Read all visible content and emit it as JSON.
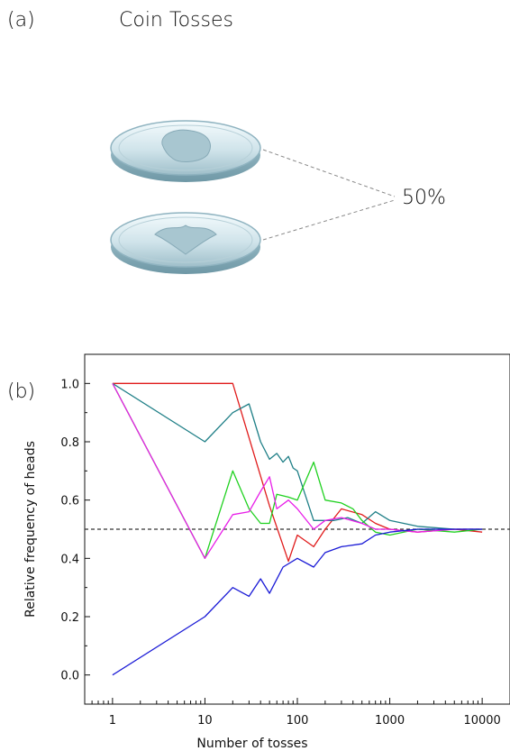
{
  "panel_a": {
    "label": "(a)",
    "title": "Coin Tosses",
    "percentage": "50%"
  },
  "panel_b": {
    "label": "(b)"
  },
  "colors": {
    "red": "#e01b1b",
    "teal": "#1f7f87",
    "green": "#1fd11f",
    "magenta": "#e81ee8",
    "blue": "#1a1ad6",
    "reference": "#333333"
  },
  "chart_data": {
    "type": "line",
    "xscale": "log",
    "xlabel": "Number of tosses",
    "ylabel": "Relative frequency of heads",
    "xlim": [
      0.5,
      20000
    ],
    "ylim": [
      -0.1,
      1.1
    ],
    "xticks": [
      1,
      10,
      100,
      1000,
      10000
    ],
    "xtick_labels": [
      "1",
      "10",
      "100",
      "1000",
      "10000"
    ],
    "yticks": [
      0.0,
      0.2,
      0.4,
      0.6,
      0.8,
      1.0
    ],
    "ytick_labels": [
      "0.0",
      "0.2",
      "0.4",
      "0.6",
      "0.8",
      "1.0"
    ],
    "reference_line": 0.5,
    "series": [
      {
        "color": "#e01b1b",
        "x": [
          1,
          20,
          50,
          80,
          100,
          150,
          200,
          300,
          500,
          700,
          1000,
          2000,
          5000,
          10000
        ],
        "y": [
          1.0,
          1.0,
          0.58,
          0.39,
          0.48,
          0.44,
          0.5,
          0.57,
          0.55,
          0.52,
          0.5,
          0.49,
          0.5,
          0.49
        ]
      },
      {
        "color": "#1f7f87",
        "x": [
          1,
          10,
          20,
          30,
          40,
          50,
          60,
          70,
          80,
          90,
          100,
          150,
          250,
          350,
          500,
          700,
          1000,
          2000,
          5000,
          10000
        ],
        "y": [
          1.0,
          0.8,
          0.9,
          0.93,
          0.8,
          0.74,
          0.76,
          0.73,
          0.75,
          0.71,
          0.7,
          0.53,
          0.53,
          0.54,
          0.52,
          0.56,
          0.53,
          0.51,
          0.5,
          0.5
        ]
      },
      {
        "color": "#1fd11f",
        "x": [
          1,
          10,
          20,
          30,
          40,
          50,
          60,
          80,
          100,
          150,
          200,
          300,
          400,
          500,
          700,
          1000,
          2000,
          5000,
          10000
        ],
        "y": [
          1.0,
          0.4,
          0.7,
          0.57,
          0.52,
          0.52,
          0.62,
          0.61,
          0.6,
          0.73,
          0.6,
          0.59,
          0.57,
          0.53,
          0.49,
          0.48,
          0.5,
          0.49,
          0.5
        ]
      },
      {
        "color": "#e81ee8",
        "x": [
          1,
          10,
          20,
          30,
          40,
          50,
          60,
          80,
          100,
          150,
          200,
          300,
          500,
          700,
          1000,
          2000,
          5000,
          10000
        ],
        "y": [
          1.0,
          0.4,
          0.55,
          0.56,
          0.63,
          0.68,
          0.57,
          0.6,
          0.57,
          0.5,
          0.53,
          0.54,
          0.52,
          0.5,
          0.5,
          0.49,
          0.5,
          0.5
        ]
      },
      {
        "color": "#1a1ad6",
        "x": [
          1,
          10,
          20,
          30,
          40,
          50,
          70,
          100,
          150,
          200,
          300,
          500,
          700,
          1000,
          2000,
          5000,
          10000
        ],
        "y": [
          0.0,
          0.2,
          0.3,
          0.27,
          0.33,
          0.28,
          0.37,
          0.4,
          0.37,
          0.42,
          0.44,
          0.45,
          0.48,
          0.49,
          0.5,
          0.5,
          0.5
        ]
      }
    ]
  }
}
